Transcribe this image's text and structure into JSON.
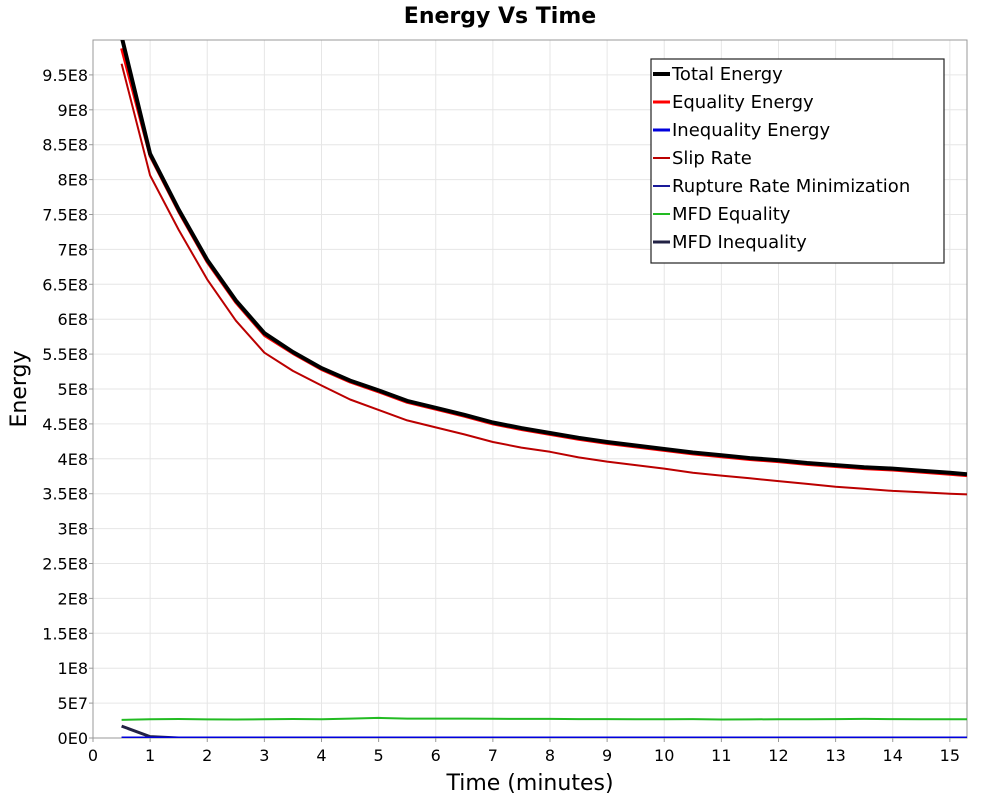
{
  "chart_data": {
    "type": "line",
    "title": "Energy Vs Time",
    "xlabel": "Time (minutes)",
    "ylabel": "Energy",
    "xlim": [
      0,
      15.3
    ],
    "ylim": [
      0,
      1000000000
    ],
    "xticks": [
      0,
      1,
      2,
      3,
      4,
      5,
      6,
      7,
      8,
      9,
      10,
      11,
      12,
      13,
      14,
      15
    ],
    "xtick_labels": [
      "0",
      "1",
      "2",
      "3",
      "4",
      "5",
      "6",
      "7",
      "8",
      "9",
      "10",
      "11",
      "12",
      "13",
      "14",
      "15"
    ],
    "yticks": [
      0,
      50000000,
      100000000,
      150000000,
      200000000,
      250000000,
      300000000,
      350000000,
      400000000,
      450000000,
      500000000,
      550000000,
      600000000,
      650000000,
      700000000,
      750000000,
      800000000,
      850000000,
      900000000,
      950000000
    ],
    "ytick_labels": [
      "0E0",
      "5E7",
      "1E8",
      "1.5E8",
      "2E8",
      "2.5E8",
      "3E8",
      "3.5E8",
      "4E8",
      "4.5E8",
      "5E8",
      "5.5E8",
      "6E8",
      "6.5E8",
      "7E8",
      "7.5E8",
      "8E8",
      "8.5E8",
      "9E8",
      "9.5E8"
    ],
    "grid": true,
    "legend_position": "top-right",
    "x": [
      0.5,
      1,
      1.5,
      2,
      2.5,
      3,
      3.5,
      4,
      4.5,
      5,
      5.5,
      6,
      6.5,
      7,
      7.5,
      8,
      8.5,
      9,
      9.5,
      10,
      10.5,
      11,
      11.5,
      12,
      12.5,
      13,
      13.5,
      14,
      14.5,
      15,
      15.3
    ],
    "series": [
      {
        "name": "Total Energy",
        "color": "#000000",
        "width": 4,
        "values": [
          1005000000,
          837000000,
          757000000,
          685000000,
          627000000,
          580000000,
          553000000,
          530000000,
          512000000,
          498000000,
          483000000,
          473000000,
          463000000,
          452000000,
          444000000,
          437000000,
          430000000,
          424000000,
          419000000,
          414000000,
          409000000,
          405000000,
          401000000,
          398000000,
          394000000,
          391000000,
          388000000,
          386000000,
          383000000,
          380000000,
          378000000
        ]
      },
      {
        "name": "Equality Energy",
        "color": "#ff0000",
        "width": 3,
        "values": [
          988000000,
          834000000,
          754000000,
          682000000,
          624000000,
          577000000,
          551000000,
          528000000,
          510000000,
          496000000,
          481000000,
          471000000,
          461000000,
          450000000,
          442000000,
          435000000,
          428000000,
          422000000,
          417000000,
          412000000,
          407000000,
          403000000,
          399000000,
          396000000,
          392000000,
          389000000,
          386000000,
          384000000,
          381000000,
          378000000,
          376000000
        ]
      },
      {
        "name": "Inequality Energy",
        "color": "#0000dd",
        "width": 3,
        "values": [
          0,
          0,
          0,
          0,
          0,
          0,
          0,
          0,
          0,
          0,
          0,
          0,
          0,
          0,
          0,
          0,
          0,
          0,
          0,
          0,
          0,
          0,
          0,
          0,
          0,
          0,
          0,
          0,
          0,
          0,
          0
        ]
      },
      {
        "name": "Slip Rate",
        "color": "#bb0000",
        "width": 2,
        "values": [
          966000000,
          806000000,
          728000000,
          657000000,
          598000000,
          552000000,
          526000000,
          505000000,
          485000000,
          470000000,
          455000000,
          445000000,
          435000000,
          424000000,
          416000000,
          410000000,
          402000000,
          396000000,
          391000000,
          386000000,
          380000000,
          376000000,
          372000000,
          368000000,
          364000000,
          360000000,
          357000000,
          354000000,
          352000000,
          350000000,
          349000000
        ]
      },
      {
        "name": "Rupture Rate Minimization",
        "color": "#1a1a99",
        "width": 2,
        "values": [
          500000,
          500000,
          500000,
          500000,
          500000,
          500000,
          500000,
          500000,
          500000,
          500000,
          500000,
          500000,
          500000,
          500000,
          500000,
          500000,
          500000,
          500000,
          500000,
          500000,
          500000,
          500000,
          500000,
          500000,
          500000,
          500000,
          500000,
          500000,
          500000,
          500000,
          500000
        ]
      },
      {
        "name": "MFD Equality",
        "color": "#22bb22",
        "width": 2,
        "values": [
          26000000,
          27000000,
          27200000,
          26700000,
          26500000,
          26800000,
          27200000,
          26800000,
          27800000,
          28800000,
          27800000,
          27800000,
          27800000,
          27500000,
          27300000,
          27300000,
          27100000,
          27100000,
          27000000,
          27000000,
          27100000,
          26500000,
          26600000,
          27000000,
          27000000,
          27100000,
          27300000,
          27100000,
          27000000,
          27000000,
          27000000
        ]
      },
      {
        "name": "MFD Inequality",
        "color": "#222244",
        "width": 3,
        "values": [
          17000000,
          2000000,
          0,
          0,
          0,
          0,
          0,
          0,
          0,
          0,
          0,
          0,
          0,
          0,
          0,
          0,
          0,
          0,
          0,
          0,
          0,
          0,
          0,
          0,
          0,
          0,
          0,
          0,
          0,
          0,
          0
        ]
      }
    ]
  }
}
